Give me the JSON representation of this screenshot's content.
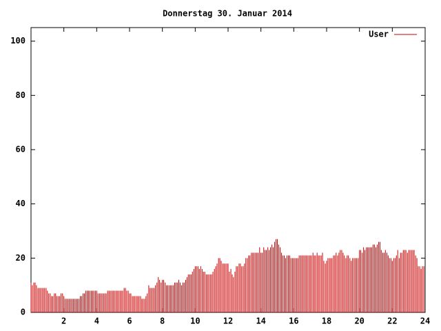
{
  "chart_data": {
    "type": "impulse",
    "title": "Donnerstag 30. Januar 2014",
    "xlim": [
      0,
      24
    ],
    "xticks": [
      2,
      4,
      6,
      8,
      10,
      12,
      14,
      16,
      18,
      20,
      22,
      24
    ],
    "ylim": [
      0,
      105
    ],
    "yticks": [
      0,
      20,
      40,
      60,
      80,
      100
    ],
    "grid": false,
    "legend": "top-right",
    "x": [
      0,
      0.08,
      0.17,
      0.25,
      0.33,
      0.42,
      0.5,
      0.58,
      0.67,
      0.75,
      0.83,
      0.92,
      1,
      1.08,
      1.17,
      1.25,
      1.33,
      1.42,
      1.5,
      1.58,
      1.67,
      1.75,
      1.83,
      1.92,
      2,
      2.08,
      2.17,
      2.25,
      2.33,
      2.42,
      2.5,
      2.58,
      2.67,
      2.75,
      2.83,
      2.92,
      3,
      3.08,
      3.17,
      3.25,
      3.33,
      3.42,
      3.5,
      3.58,
      3.67,
      3.75,
      3.83,
      3.92,
      4,
      4.08,
      4.17,
      4.25,
      4.33,
      4.42,
      4.5,
      4.58,
      4.67,
      4.75,
      4.83,
      4.92,
      5,
      5.08,
      5.17,
      5.25,
      5.33,
      5.42,
      5.5,
      5.58,
      5.67,
      5.75,
      5.83,
      5.92,
      6,
      6.08,
      6.17,
      6.25,
      6.33,
      6.42,
      6.5,
      6.58,
      6.67,
      6.75,
      6.83,
      6.92,
      7,
      7.08,
      7.17,
      7.25,
      7.33,
      7.42,
      7.5,
      7.58,
      7.67,
      7.75,
      7.83,
      7.92,
      8,
      8.08,
      8.17,
      8.25,
      8.33,
      8.42,
      8.5,
      8.58,
      8.67,
      8.75,
      8.83,
      8.92,
      9,
      9.08,
      9.17,
      9.25,
      9.33,
      9.42,
      9.5,
      9.58,
      9.67,
      9.75,
      9.83,
      9.92,
      10,
      10.08,
      10.17,
      10.25,
      10.33,
      10.42,
      10.5,
      10.58,
      10.67,
      10.75,
      10.83,
      10.92,
      11,
      11.08,
      11.17,
      11.25,
      11.33,
      11.42,
      11.5,
      11.58,
      11.67,
      11.75,
      11.83,
      11.92,
      12,
      12.08,
      12.17,
      12.25,
      12.33,
      12.42,
      12.5,
      12.58,
      12.67,
      12.75,
      12.83,
      12.92,
      13,
      13.08,
      13.17,
      13.25,
      13.33,
      13.42,
      13.5,
      13.58,
      13.67,
      13.75,
      13.83,
      13.92,
      14,
      14.08,
      14.17,
      14.25,
      14.33,
      14.42,
      14.5,
      14.58,
      14.67,
      14.75,
      14.83,
      14.92,
      15,
      15.08,
      15.17,
      15.25,
      15.33,
      15.42,
      15.5,
      15.58,
      15.67,
      15.75,
      15.83,
      15.92,
      16,
      16.08,
      16.17,
      16.25,
      16.33,
      16.42,
      16.5,
      16.58,
      16.67,
      16.75,
      16.83,
      16.92,
      17,
      17.08,
      17.17,
      17.25,
      17.33,
      17.42,
      17.5,
      17.58,
      17.67,
      17.75,
      17.83,
      17.92,
      18,
      18.08,
      18.17,
      18.25,
      18.33,
      18.42,
      18.5,
      18.58,
      18.67,
      18.75,
      18.83,
      18.92,
      19,
      19.08,
      19.17,
      19.25,
      19.33,
      19.42,
      19.5,
      19.58,
      19.67,
      19.75,
      19.83,
      19.92,
      20,
      20.08,
      20.17,
      20.25,
      20.33,
      20.42,
      20.5,
      20.58,
      20.67,
      20.75,
      20.83,
      20.92,
      21,
      21.08,
      21.17,
      21.25,
      21.33,
      21.42,
      21.5,
      21.58,
      21.67,
      21.75,
      21.83,
      21.92,
      22,
      22.08,
      22.17,
      22.25,
      22.33,
      22.42,
      22.5,
      22.58,
      22.67,
      22.75,
      22.83,
      22.92,
      23,
      23.08,
      23.17,
      23.25,
      23.33,
      23.42,
      23.5,
      23.58,
      23.67,
      23.75,
      23.83,
      23.92
    ],
    "series": [
      {
        "name": "User",
        "color": "#cc0000",
        "values": [
          11,
          10,
          11,
          11,
          10,
          9,
          9,
          9,
          9,
          9,
          9,
          9,
          8,
          7,
          7,
          6,
          6,
          7,
          7,
          6,
          6,
          6,
          7,
          7,
          6,
          5,
          5,
          5,
          5,
          5,
          5,
          5,
          5,
          5,
          5,
          5,
          6,
          6,
          7,
          7,
          8,
          8,
          8,
          8,
          8,
          8,
          8,
          8,
          8,
          7,
          7,
          7,
          7,
          7,
          7,
          7,
          8,
          8,
          8,
          8,
          8,
          8,
          8,
          8,
          8,
          8,
          8,
          8,
          9,
          9,
          8,
          8,
          7,
          7,
          6,
          6,
          6,
          6,
          6,
          6,
          6,
          5,
          5,
          5,
          6,
          7,
          10,
          9,
          9,
          9,
          9,
          10,
          11,
          13,
          12,
          11,
          12,
          12,
          11,
          10,
          10,
          10,
          10,
          10,
          10,
          11,
          11,
          11,
          12,
          11,
          10,
          11,
          11,
          12,
          13,
          14,
          14,
          14,
          15,
          16,
          17,
          17,
          17,
          16,
          17,
          16,
          15,
          15,
          14,
          14,
          14,
          14,
          14,
          15,
          16,
          17,
          18,
          20,
          20,
          19,
          18,
          18,
          18,
          18,
          18,
          15,
          16,
          14,
          13,
          15,
          17,
          17,
          18,
          18,
          17,
          17,
          18,
          20,
          20,
          21,
          21,
          22,
          22,
          22,
          22,
          22,
          22,
          24,
          22,
          22,
          24,
          23,
          23,
          24,
          23,
          24,
          25,
          24,
          26,
          27,
          27,
          25,
          24,
          22,
          21,
          21,
          20,
          21,
          21,
          21,
          20,
          20,
          20,
          20,
          20,
          20,
          21,
          21,
          21,
          21,
          21,
          21,
          21,
          21,
          21,
          21,
          22,
          21,
          21,
          22,
          21,
          21,
          21,
          22,
          19,
          18,
          19,
          20,
          20,
          20,
          20,
          21,
          21,
          22,
          21,
          22,
          23,
          23,
          22,
          21,
          20,
          21,
          21,
          20,
          19,
          20,
          20,
          20,
          20,
          20,
          23,
          23,
          22,
          24,
          23,
          24,
          24,
          24,
          24,
          24,
          25,
          25,
          24,
          25,
          26,
          26,
          23,
          22,
          22,
          23,
          22,
          21,
          20,
          20,
          19,
          20,
          20,
          21,
          23,
          20,
          22,
          22,
          23,
          23,
          23,
          22,
          23,
          23,
          23,
          23,
          23,
          21,
          20,
          17,
          17,
          16,
          17,
          17
        ]
      }
    ]
  }
}
